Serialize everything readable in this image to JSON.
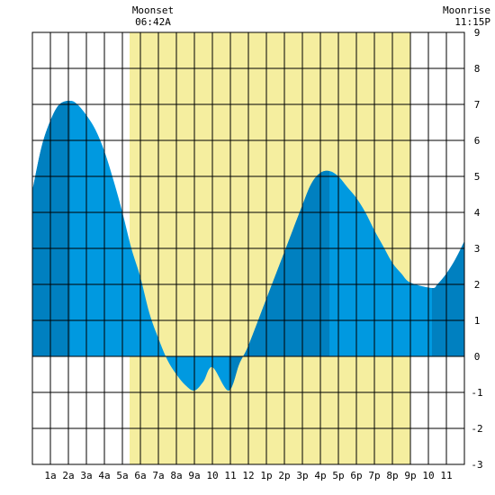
{
  "chart_data": {
    "type": "area",
    "title": "",
    "xlabel": "",
    "ylabel": "",
    "xlim": [
      0,
      24
    ],
    "ylim": [
      -3,
      9
    ],
    "grid": true,
    "x_ticks": [
      {
        "x": 1,
        "label": "1a"
      },
      {
        "x": 2,
        "label": "2a"
      },
      {
        "x": 3,
        "label": "3a"
      },
      {
        "x": 4,
        "label": "4a"
      },
      {
        "x": 5,
        "label": "5a"
      },
      {
        "x": 6,
        "label": "6a"
      },
      {
        "x": 7,
        "label": "7a"
      },
      {
        "x": 8,
        "label": "8a"
      },
      {
        "x": 9,
        "label": "9a"
      },
      {
        "x": 10,
        "label": "10"
      },
      {
        "x": 11,
        "label": "11"
      },
      {
        "x": 12,
        "label": "12"
      },
      {
        "x": 13,
        "label": "1p"
      },
      {
        "x": 14,
        "label": "2p"
      },
      {
        "x": 15,
        "label": "3p"
      },
      {
        "x": 16,
        "label": "4p"
      },
      {
        "x": 17,
        "label": "5p"
      },
      {
        "x": 18,
        "label": "6p"
      },
      {
        "x": 19,
        "label": "7p"
      },
      {
        "x": 20,
        "label": "8p"
      },
      {
        "x": 21,
        "label": "9p"
      },
      {
        "x": 22,
        "label": "10"
      },
      {
        "x": 23,
        "label": "11"
      }
    ],
    "y_ticks": [
      -3,
      -2,
      -1,
      0,
      1,
      2,
      3,
      4,
      5,
      6,
      7,
      8,
      9
    ],
    "extremes": [
      {
        "x": 2.1,
        "y": 7.1,
        "kind": "high"
      },
      {
        "x": 10.9,
        "y": -0.95,
        "kind": "low"
      },
      {
        "x": 16.5,
        "y": 5.15,
        "kind": "high"
      },
      {
        "x": 22.2,
        "y": 1.9,
        "kind": "low"
      }
    ],
    "series": [
      {
        "values": [
          [
            0,
            4.6
          ],
          [
            0.5,
            5.8
          ],
          [
            1,
            6.55
          ],
          [
            1.5,
            7.0
          ],
          [
            2.1,
            7.1
          ],
          [
            2.5,
            7.0
          ],
          [
            3,
            6.7
          ],
          [
            3.5,
            6.3
          ],
          [
            4,
            5.7
          ],
          [
            4.5,
            4.9
          ],
          [
            5,
            4.0
          ],
          [
            5.5,
            3.0
          ],
          [
            6,
            2.2
          ],
          [
            6.5,
            1.2
          ],
          [
            7,
            0.5
          ],
          [
            7.5,
            -0.1
          ],
          [
            8,
            -0.5
          ],
          [
            8.5,
            -0.8
          ],
          [
            9,
            -0.95
          ],
          [
            9.5,
            -0.7
          ],
          [
            10,
            -0.3
          ],
          [
            10.9,
            -0.95
          ],
          [
            11.5,
            -0.2
          ],
          [
            12,
            0.3
          ],
          [
            13,
            1.6
          ],
          [
            14,
            2.9
          ],
          [
            15,
            4.2
          ],
          [
            15.5,
            4.8
          ],
          [
            16,
            5.1
          ],
          [
            16.5,
            5.15
          ],
          [
            17,
            5.0
          ],
          [
            17.5,
            4.7
          ],
          [
            18,
            4.4
          ],
          [
            18.5,
            4.0
          ],
          [
            19,
            3.5
          ],
          [
            19.5,
            3.05
          ],
          [
            20,
            2.6
          ],
          [
            20.5,
            2.3
          ],
          [
            21,
            2.05
          ],
          [
            22.2,
            1.9
          ],
          [
            22.5,
            2.0
          ],
          [
            23,
            2.3
          ],
          [
            23.5,
            2.7
          ],
          [
            24,
            3.2
          ]
        ]
      }
    ],
    "annotations": [
      {
        "label": "Moonset",
        "time": "06:42A",
        "x": 6.7
      },
      {
        "label": "Moonrise",
        "time": "11:15P",
        "x": 23.25
      }
    ],
    "moon_up": {
      "start": 6.7,
      "end": 23.25
    },
    "daylight": {
      "start": 5.4,
      "end": 21.0
    },
    "colors": {
      "daylight": "#f5ee9f",
      "tide_fill": "#0099e0",
      "tide_dark": "#0080c0",
      "grid": "#000000",
      "background": "#ffffff"
    }
  }
}
